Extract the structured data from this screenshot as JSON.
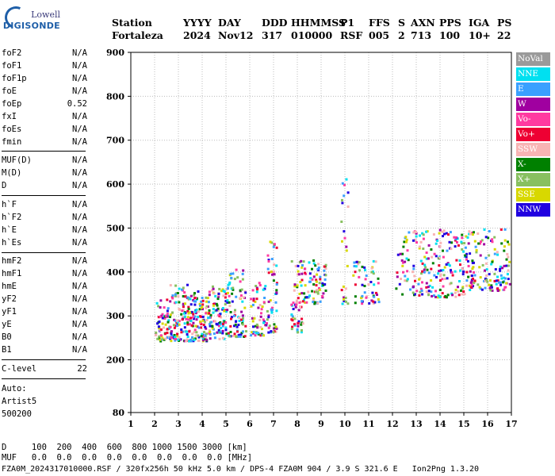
{
  "logo": {
    "top": "Lowell",
    "bottom": "DIGISONDE"
  },
  "header": {
    "labels": [
      "Station",
      "YYYY",
      "DAY",
      "DDD",
      "HHMMSS",
      "P1",
      "FFS",
      "S",
      "AXN",
      "PPS",
      "IGA",
      "PS"
    ],
    "values": [
      "Fortaleza",
      "2024",
      "Nov12",
      "317",
      "010000",
      "RSF",
      "005",
      "2",
      "713",
      "100",
      "10+",
      "22"
    ]
  },
  "params_group1": [
    {
      "name": "foF2",
      "value": "N/A"
    },
    {
      "name": "foF1",
      "value": "N/A"
    },
    {
      "name": "foF1p",
      "value": "N/A"
    },
    {
      "name": "foE",
      "value": "N/A"
    },
    {
      "name": "foEp",
      "value": "0.52"
    },
    {
      "name": "fxI",
      "value": "N/A"
    },
    {
      "name": "foEs",
      "value": "N/A"
    },
    {
      "name": "fmin",
      "value": "N/A"
    }
  ],
  "params_group2": [
    {
      "name": "MUF(D)",
      "value": "N/A"
    },
    {
      "name": "M(D)",
      "value": "N/A"
    },
    {
      "name": "D",
      "value": "N/A"
    }
  ],
  "params_group3": [
    {
      "name": "h`F",
      "value": "N/A"
    },
    {
      "name": "h`F2",
      "value": "N/A"
    },
    {
      "name": "h`E",
      "value": "N/A"
    },
    {
      "name": "h`Es",
      "value": "N/A"
    }
  ],
  "params_group4": [
    {
      "name": "hmF2",
      "value": "N/A"
    },
    {
      "name": "hmF1",
      "value": "N/A"
    },
    {
      "name": "hmE",
      "value": "N/A"
    },
    {
      "name": "yF2",
      "value": "N/A"
    },
    {
      "name": "yF1",
      "value": "N/A"
    },
    {
      "name": "yE",
      "value": "N/A"
    },
    {
      "name": "B0",
      "value": "N/A"
    },
    {
      "name": "B1",
      "value": "N/A"
    }
  ],
  "clevel": {
    "name": "C-level",
    "value": "22"
  },
  "auto": [
    "Auto:",
    "Artist5",
    "500200"
  ],
  "legend": [
    {
      "label": "NoVal",
      "bg": "#9a9a9a"
    },
    {
      "label": "NNE",
      "bg": "#00e0f0"
    },
    {
      "label": "E",
      "bg": "#3aa0ff"
    },
    {
      "label": "W",
      "bg": "#a000a0"
    },
    {
      "label": "Vo-",
      "bg": "#ff3aa0"
    },
    {
      "label": "Vo+",
      "bg": "#ee0033"
    },
    {
      "label": "SSW",
      "bg": "#f8b4b4"
    },
    {
      "label": "X-",
      "bg": "#008000"
    },
    {
      "label": "X+",
      "bg": "#88c060"
    },
    {
      "label": "SSE",
      "bg": "#d8d800"
    },
    {
      "label": "NNW",
      "bg": "#2000e0"
    }
  ],
  "bottom": {
    "d_line": "D     100  200  400  600  800 1000 1500 3000 [km]",
    "muf_line": "MUF   0.0  0.0  0.0  0.0  0.0  0.0  0.0  0.0 [MHz]",
    "footer": "FZA0M_2024317010000.RSF / 320fx256h 50 kHz 5.0 km / DPS-4 FZA0M 904 / 3.9 S 321.6 E   Ion2Png 1.3.20"
  },
  "chart_data": {
    "type": "scatter",
    "xlim": [
      1,
      17
    ],
    "ylim": [
      80,
      900
    ],
    "x_ticks": [
      1,
      2,
      3,
      4,
      5,
      6,
      7,
      8,
      9,
      10,
      11,
      12,
      13,
      14,
      15,
      16,
      17
    ],
    "y_ticks": [
      80,
      200,
      300,
      400,
      500,
      600,
      700,
      800,
      900
    ],
    "grid": true,
    "clusters": [
      {
        "x": [
          2.0,
          2.6
        ],
        "y": [
          245,
          340
        ],
        "n": 60
      },
      {
        "x": [
          2.6,
          3.4
        ],
        "y": [
          245,
          380
        ],
        "n": 110
      },
      {
        "x": [
          3.4,
          4.2
        ],
        "y": [
          245,
          360
        ],
        "n": 110
      },
      {
        "x": [
          4.2,
          5.0
        ],
        "y": [
          250,
          370
        ],
        "n": 100
      },
      {
        "x": [
          5.0,
          5.8
        ],
        "y": [
          255,
          410
        ],
        "n": 90
      },
      {
        "x": [
          6.0,
          6.7
        ],
        "y": [
          258,
          380
        ],
        "n": 60
      },
      {
        "x": [
          6.7,
          7.1
        ],
        "y": [
          265,
          480
        ],
        "n": 50
      },
      {
        "x": [
          7.7,
          8.2
        ],
        "y": [
          265,
          430
        ],
        "n": 60
      },
      {
        "x": [
          8.2,
          9.0
        ],
        "y": [
          330,
          430
        ],
        "n": 60
      },
      {
        "x": [
          9.0,
          9.2
        ],
        "y": [
          345,
          420
        ],
        "n": 15
      },
      {
        "x": [
          9.8,
          10.1
        ],
        "y": [
          330,
          620
        ],
        "n": 25
      },
      {
        "x": [
          10.3,
          11.4
        ],
        "y": [
          330,
          430
        ],
        "n": 55
      },
      {
        "x": [
          12.1,
          15.0
        ],
        "y": [
          345,
          500
        ],
        "n": 210
      },
      {
        "x": [
          15.0,
          16.9
        ],
        "y": [
          360,
          500
        ],
        "n": 150
      }
    ]
  }
}
